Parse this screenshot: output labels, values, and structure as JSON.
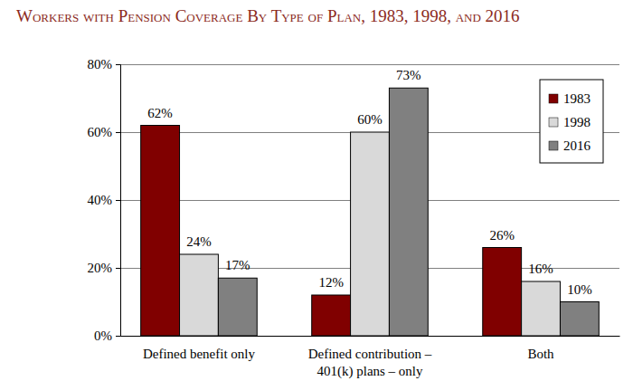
{
  "chart_data": {
    "type": "bar",
    "title": "Workers with Pension Coverage By Type of Plan, 1983, 1998, and 2016",
    "categories": [
      "Defined benefit only",
      "Defined contribution –\n401(k) plans – only",
      "Both"
    ],
    "series": [
      {
        "name": "1983",
        "color": "#800000",
        "values": [
          62,
          12,
          26
        ],
        "value_labels": [
          "62%",
          "12%",
          "26%"
        ]
      },
      {
        "name": "1998",
        "color": "#d9d9d9",
        "values": [
          24,
          60,
          16
        ],
        "value_labels": [
          "24%",
          "60%",
          "16%"
        ]
      },
      {
        "name": "2016",
        "color": "#808080",
        "values": [
          17,
          73,
          10
        ],
        "value_labels": [
          "17%",
          "73%",
          "10%"
        ]
      }
    ],
    "ylim": [
      0,
      80
    ],
    "yticks": [
      {
        "value": 0,
        "label": "0%"
      },
      {
        "value": 20,
        "label": "20%"
      },
      {
        "value": 40,
        "label": "40%"
      },
      {
        "value": 60,
        "label": "60%"
      },
      {
        "value": 80,
        "label": "80%"
      }
    ],
    "grid": true,
    "legend": "upper right",
    "data_labels": true
  }
}
